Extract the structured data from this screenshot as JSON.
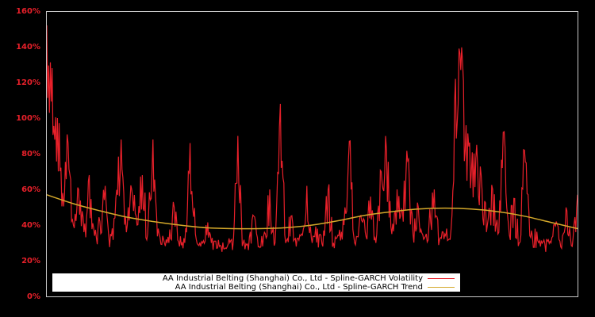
{
  "chart_data": {
    "type": "line",
    "title": "",
    "xlabel": "",
    "ylabel": "",
    "ylim": [
      0,
      160
    ],
    "y_tick_labels": [
      "0%",
      "20%",
      "40%",
      "60%",
      "80%",
      "100%",
      "120%",
      "140%",
      "160%"
    ],
    "y_tick_values": [
      0,
      20,
      40,
      60,
      80,
      100,
      120,
      140,
      160
    ],
    "grid": false,
    "legend_position": "lower center, inside plot",
    "background": "#000000",
    "frame_color": "#c8c8c8",
    "series": [
      {
        "name": "AA Industrial Belting (Shanghai) Co., Ltd - Spline-GARCH Volatility",
        "color": "#e8202a",
        "note": "daily series, values approximated at ~60 evenly spaced points across the x range",
        "values": [
          152,
          128,
          100,
          58,
          86,
          40,
          60,
          36,
          68,
          34,
          42,
          62,
          35,
          55,
          88,
          36,
          60,
          40,
          68,
          35,
          88,
          38,
          32,
          30,
          50,
          28,
          30,
          86,
          35,
          28,
          40,
          30,
          27,
          25,
          28,
          26,
          90,
          30,
          26,
          45,
          28,
          36,
          60,
          30,
          108,
          30,
          45,
          28,
          35,
          62,
          30,
          38,
          28,
          60,
          30,
          34,
          40,
          87,
          30,
          45,
          36,
          56,
          30,
          70,
          82,
          35,
          60,
          48,
          76,
          35,
          50,
          32,
          40,
          60,
          32,
          35,
          32,
          122,
          127,
          96,
          70,
          85,
          60,
          40,
          60,
          35,
          92,
          40,
          55,
          30,
          82,
          34,
          38,
          28,
          25,
          30,
          42,
          27,
          48,
          28,
          57
        ]
      },
      {
        "name": "AA Industrial Belting (Shanghai) Co., Ltd - Spline-GARCH Trend",
        "color": "#d4a82a",
        "note": "smooth spline trend, approximated at control points across the x range (fraction of width)",
        "points": [
          [
            0.0,
            57
          ],
          [
            0.05,
            52
          ],
          [
            0.1,
            48
          ],
          [
            0.15,
            44.5
          ],
          [
            0.2,
            42
          ],
          [
            0.25,
            40
          ],
          [
            0.3,
            38.5
          ],
          [
            0.35,
            38
          ],
          [
            0.4,
            38
          ],
          [
            0.45,
            38.5
          ],
          [
            0.5,
            40
          ],
          [
            0.55,
            42.5
          ],
          [
            0.6,
            45.5
          ],
          [
            0.65,
            47.5
          ],
          [
            0.7,
            49
          ],
          [
            0.75,
            49.5
          ],
          [
            0.8,
            49
          ],
          [
            0.85,
            47.5
          ],
          [
            0.9,
            45
          ],
          [
            0.95,
            41.5
          ],
          [
            1.0,
            38
          ]
        ]
      }
    ]
  },
  "axis": {
    "y_labels": [
      "160%",
      "140%",
      "120%",
      "100%",
      "80%",
      "60%",
      "40%",
      "20%",
      "0%"
    ]
  },
  "legend": {
    "items": [
      {
        "label": "AA Industrial Belting (Shanghai) Co., Ltd - Spline-GARCH Volatility",
        "color": "#e8202a"
      },
      {
        "label": "AA Industrial Belting (Shanghai) Co., Ltd - Spline-GARCH Trend",
        "color": "#d4a82a"
      }
    ]
  }
}
